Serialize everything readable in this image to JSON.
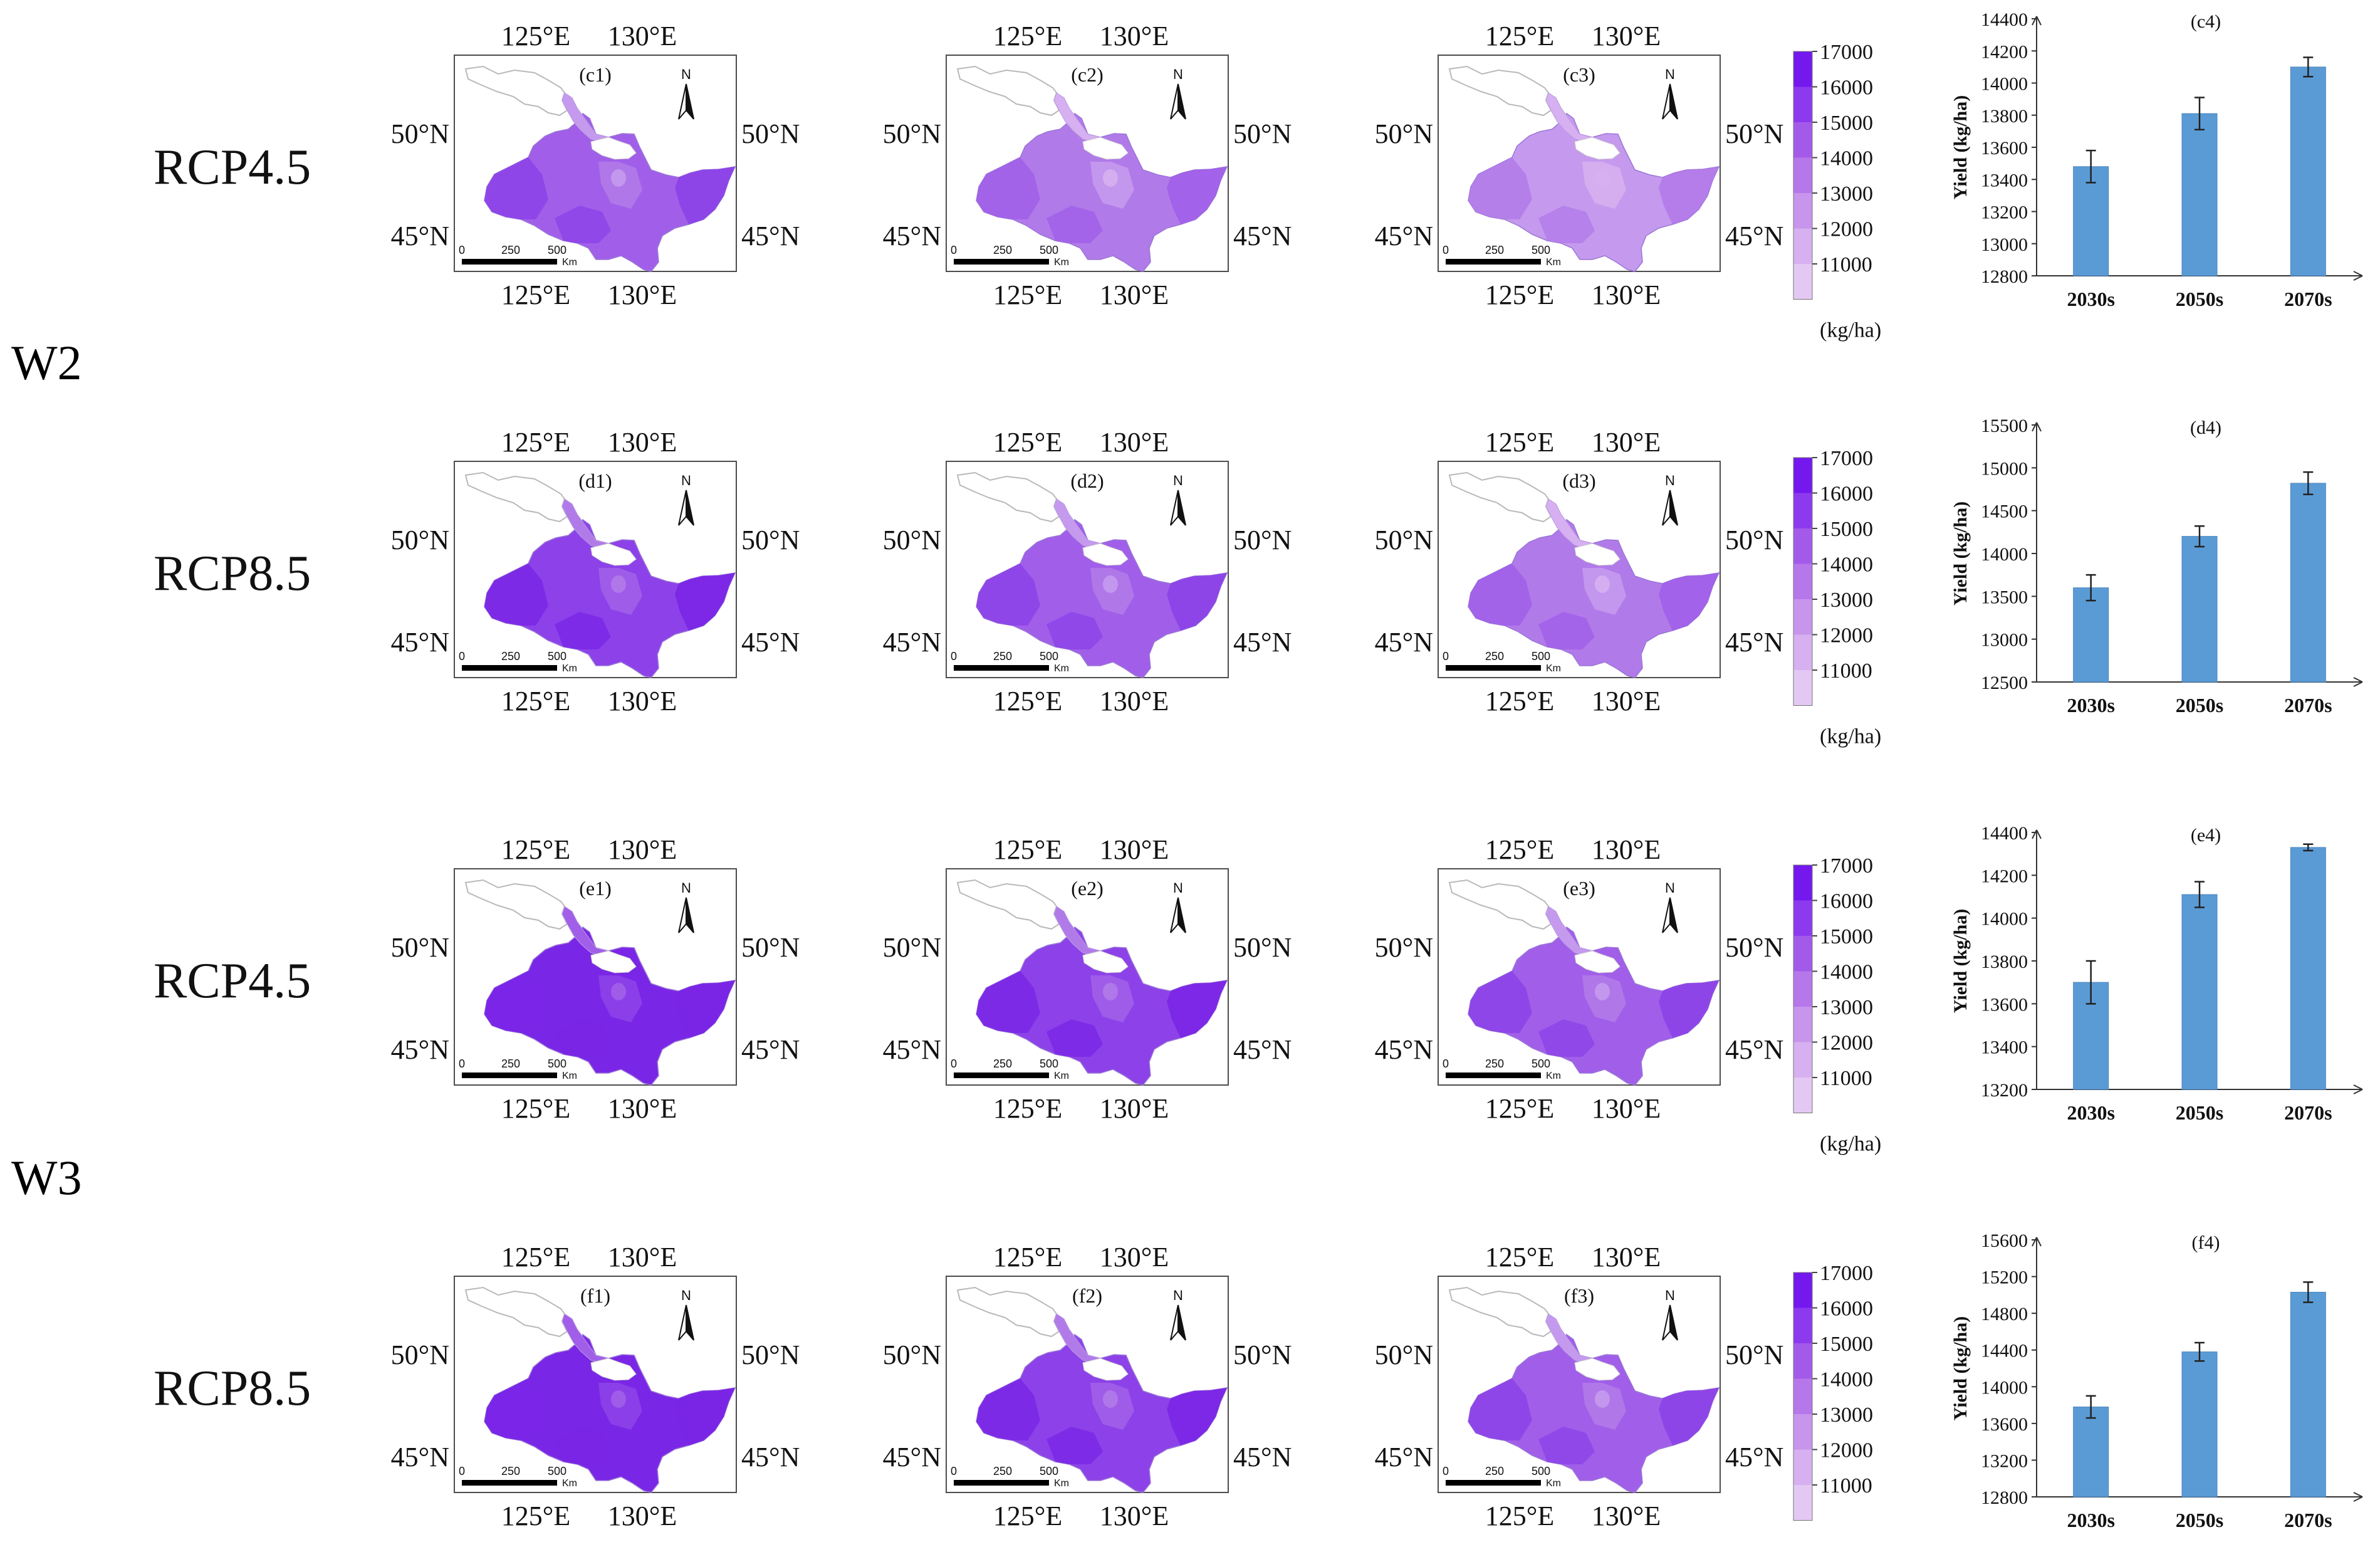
{
  "groups": [
    {
      "label": "W2"
    },
    {
      "label": "W3"
    }
  ],
  "rows": [
    {
      "scenario": "RCP4.5",
      "panels": [
        "(c1)",
        "(c2)",
        "(c3)"
      ]
    },
    {
      "scenario": "RCP8.5",
      "panels": [
        "(d1)",
        "(d2)",
        "(d3)"
      ]
    },
    {
      "scenario": "RCP4.5",
      "panels": [
        "(e1)",
        "(e2)",
        "(e3)"
      ]
    },
    {
      "scenario": "RCP8.5",
      "panels": [
        "(f1)",
        "(f2)",
        "(f3)"
      ]
    }
  ],
  "map": {
    "lon_labels": [
      "125°E",
      "130°E"
    ],
    "lat_labels": [
      "50°N",
      "45°N"
    ],
    "north": "N",
    "scale_ticks": [
      "0",
      "250",
      "500"
    ],
    "scale_unit": "Km",
    "fill_levels": [
      [
        3,
        2,
        1,
        2,
        3
      ],
      [
        4,
        3,
        2,
        3,
        4
      ],
      [
        5,
        4,
        3,
        4,
        5
      ],
      [
        5,
        4,
        3,
        4,
        5
      ]
    ]
  },
  "legend": {
    "ticks": [
      "17000",
      "16000",
      "15000",
      "14000",
      "13000",
      "12000",
      "11000"
    ],
    "unit": "(kg/ha)",
    "colors": [
      "#7418ee",
      "#8d3aee",
      "#a45ae9",
      "#b577ea",
      "#c795ec",
      "#d6b0f0",
      "#e3c8f3"
    ]
  },
  "colors": {
    "bar": "#5b9bd5",
    "bar_edge": "#4a86c0",
    "map_levels": [
      "#d6b0f0",
      "#c59aee",
      "#b17ae9",
      "#a15fe9",
      "#8c42e8",
      "#7a26e6"
    ],
    "map_lake": "#ffffff",
    "outline": "#b9b9b9"
  },
  "chart_data": [
    {
      "type": "bar",
      "panel": "(c4)",
      "categories": [
        "2030s",
        "2050s",
        "2070s"
      ],
      "values": [
        13480,
        13810,
        14100
      ],
      "errors": [
        100,
        100,
        60
      ],
      "ylabel": "Yield (kg/ha)",
      "ylim": [
        12800,
        14400
      ],
      "yticks": [
        "12800",
        "13000",
        "13200",
        "13400",
        "13600",
        "13800",
        "14000",
        "14200",
        "14400"
      ]
    },
    {
      "type": "bar",
      "panel": "(d4)",
      "categories": [
        "2030s",
        "2050s",
        "2070s"
      ],
      "values": [
        13600,
        14200,
        14820
      ],
      "errors": [
        150,
        120,
        130
      ],
      "ylabel": "Yield (kg/ha)",
      "ylim": [
        12500,
        15500
      ],
      "yticks": [
        "12500",
        "13000",
        "13500",
        "14000",
        "14500",
        "15000",
        "15500"
      ]
    },
    {
      "type": "bar",
      "panel": "(e4)",
      "categories": [
        "2030s",
        "2050s",
        "2070s"
      ],
      "values": [
        13700,
        14110,
        14330
      ],
      "errors": [
        100,
        60,
        15
      ],
      "ylabel": "Yield (kg/ha)",
      "ylim": [
        13200,
        14400
      ],
      "yticks": [
        "13200",
        "13400",
        "13600",
        "13800",
        "14000",
        "14200",
        "14400"
      ]
    },
    {
      "type": "bar",
      "panel": "(f4)",
      "categories": [
        "2030s",
        "2050s",
        "2070s"
      ],
      "values": [
        13780,
        14380,
        15030
      ],
      "errors": [
        120,
        100,
        110
      ],
      "ylabel": "Yield (kg/ha)",
      "ylim": [
        12800,
        15600
      ],
      "yticks": [
        "12800",
        "13200",
        "13600",
        "14000",
        "14400",
        "14800",
        "15200",
        "15600"
      ]
    }
  ]
}
